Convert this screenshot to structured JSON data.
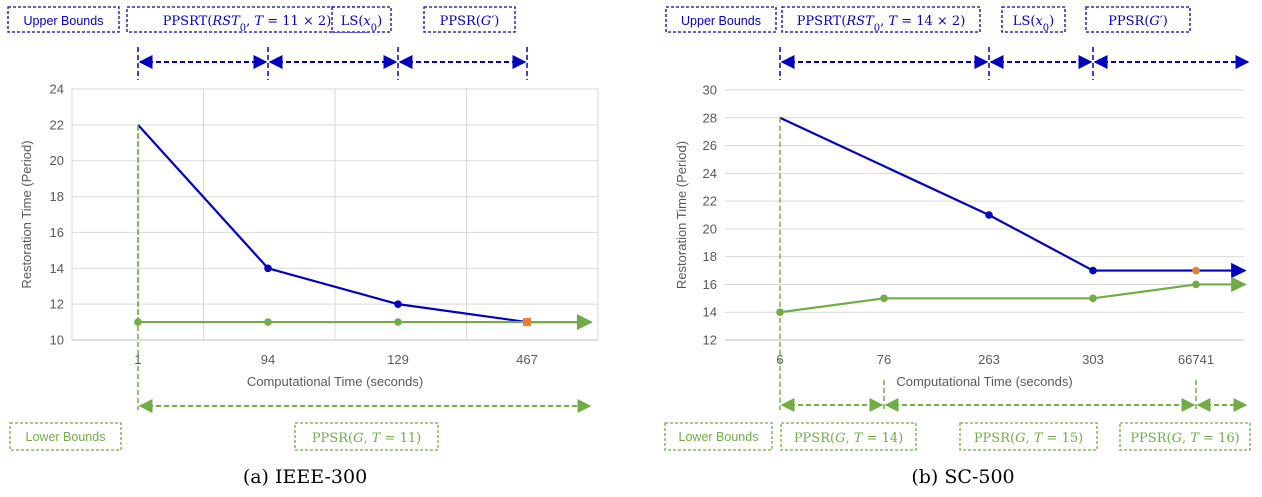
{
  "chart_data": [
    {
      "type": "line",
      "caption": "(a) IEEE-300",
      "xlabel": "Computational Time (seconds)",
      "ylabel": "Restoration Time (Period)",
      "categories": [
        "1",
        "94",
        "129",
        "467"
      ],
      "ylim": [
        10,
        24
      ],
      "yticks": [
        10,
        12,
        14,
        16,
        18,
        20,
        22,
        24
      ],
      "grid": true,
      "colors": {
        "upper": "#0000C0",
        "lower": "#70AD47",
        "marker_final": "#ED7D31"
      },
      "series": [
        {
          "values": [
            22,
            14,
            12,
            11
          ],
          "color": "#0000C0"
        },
        {
          "values": [
            11,
            11,
            11,
            11
          ],
          "color": "#70AD47"
        }
      ],
      "upper_label": "Upper Bounds",
      "lower_label": "Lower Bounds",
      "upper_segments": [
        "PPSRT(RST0, T = 11 × 2)",
        "LS(x0)",
        "PPSR(G′)"
      ],
      "lower_segments": [
        "PPSR(G, T = 11)"
      ]
    },
    {
      "type": "line",
      "caption": "(b) SC-500",
      "xlabel": "Computational Time (seconds)",
      "ylabel": "Restoration Time (Period)",
      "categories": [
        "6",
        "76",
        "263",
        "303",
        "66741"
      ],
      "ylim": [
        12,
        30
      ],
      "yticks": [
        12,
        14,
        16,
        18,
        20,
        22,
        24,
        26,
        28,
        30
      ],
      "grid": false,
      "colors": {
        "upper": "#0000C0",
        "lower": "#70AD47",
        "marker_final": "#ED7D31"
      },
      "series": [
        {
          "values": [
            28,
            null,
            21,
            17,
            17
          ],
          "color": "#0000C0"
        },
        {
          "values": [
            14,
            15,
            null,
            15,
            16
          ],
          "color": "#70AD47"
        }
      ],
      "upper_label": "Upper Bounds",
      "lower_label": "Lower Bounds",
      "upper_segments": [
        "PPSRT(RST0, T = 14 × 2)",
        "LS(x0)",
        "PPSR(G′)"
      ],
      "lower_segments": [
        "PPSR(G, T = 14)",
        "PPSR(G, T = 15)",
        "PPSR(G, T = 16)"
      ]
    }
  ]
}
